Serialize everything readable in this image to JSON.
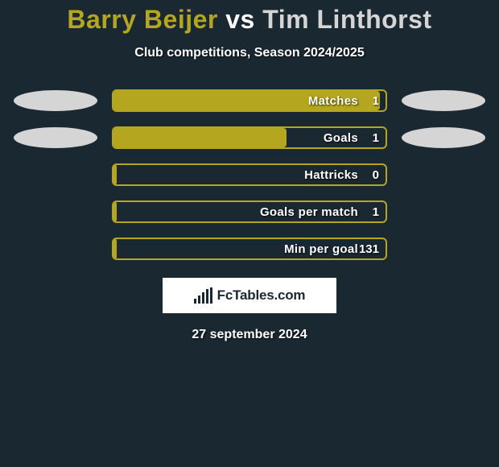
{
  "background_color": "#1a2832",
  "title": {
    "player1": "Barry Beijer",
    "vs": "vs",
    "player2": "Tim Linthorst",
    "player1_color": "#b4a61f",
    "vs_color": "#ffffff",
    "player2_color": "#d5d5d5",
    "fontsize": 32
  },
  "subtitle": "Club competitions, Season 2024/2025",
  "chart": {
    "type": "bar",
    "bar_accent": "#b4a61f",
    "ellipse_left_color": "#d5d5d5",
    "ellipse_right_color": "#d5d5d5",
    "rows": [
      {
        "label": "Matches",
        "value": "1",
        "fill_pct": 98,
        "left_ellipse": true,
        "right_ellipse": true
      },
      {
        "label": "Goals",
        "value": "1",
        "fill_pct": 64,
        "left_ellipse": true,
        "right_ellipse": true
      },
      {
        "label": "Hattricks",
        "value": "0",
        "fill_pct": 2,
        "left_ellipse": false,
        "right_ellipse": false
      },
      {
        "label": "Goals per match",
        "value": "1",
        "fill_pct": 2,
        "left_ellipse": false,
        "right_ellipse": false
      },
      {
        "label": "Min per goal",
        "value": "131",
        "fill_pct": 2,
        "left_ellipse": false,
        "right_ellipse": false
      }
    ]
  },
  "logo": {
    "text": "FcTables.com"
  },
  "date": "27 september 2024"
}
